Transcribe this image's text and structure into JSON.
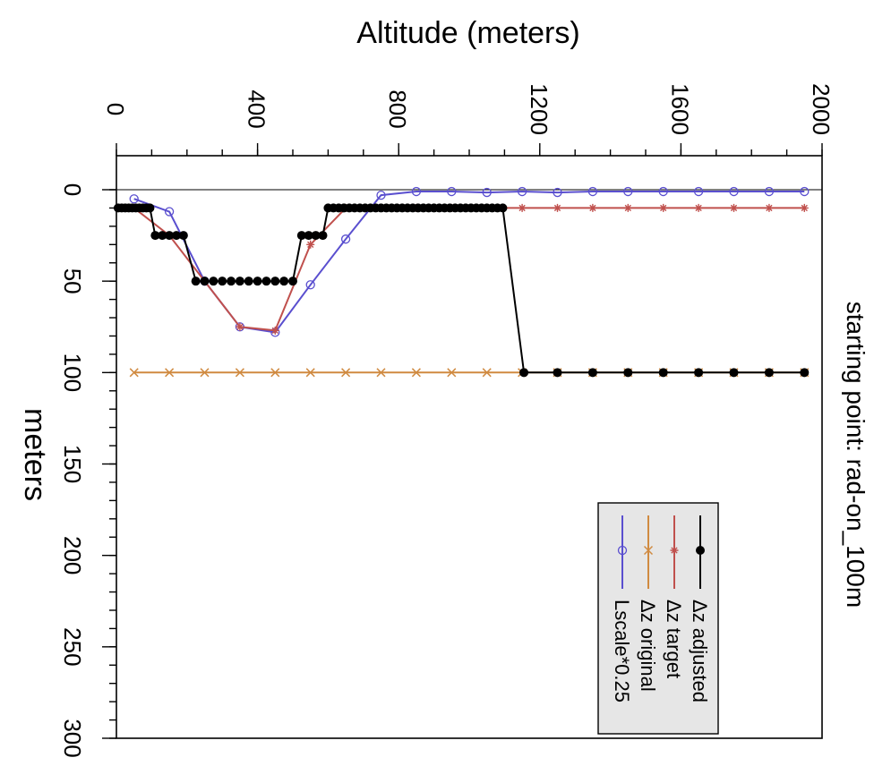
{
  "chart_data": {
    "type": "line",
    "title": "starting point: rad-on_100m",
    "xlabel": "Altitude (meters)",
    "ylabel": "meters",
    "xlim": [
      0,
      2000
    ],
    "ylim": [
      0,
      300
    ],
    "x_ticks": [
      0,
      400,
      800,
      1200,
      1600,
      2000
    ],
    "y_ticks": [
      0,
      50,
      100,
      150,
      200,
      250,
      300
    ],
    "rotated_90_clockwise": true,
    "zero_line": 0,
    "legend": {
      "position": "bottom-right",
      "entries": [
        "Δz adjusted",
        "Δz target",
        "Δz original",
        "Lscale*0.25"
      ]
    },
    "series": [
      {
        "name": "Δz adjusted",
        "color": "#000000",
        "marker": "filled-circle",
        "x": [
          5,
          15,
          25,
          35,
          45,
          55,
          65,
          75,
          85,
          95,
          110,
          130,
          150,
          170,
          190,
          225,
          250,
          275,
          300,
          325,
          350,
          375,
          400,
          425,
          450,
          475,
          500,
          525,
          545,
          565,
          585,
          600,
          615,
          630,
          645,
          660,
          675,
          690,
          705,
          720,
          735,
          750,
          765,
          780,
          795,
          810,
          825,
          840,
          855,
          870,
          885,
          900,
          915,
          930,
          945,
          960,
          975,
          990,
          1005,
          1020,
          1035,
          1050,
          1065,
          1080,
          1095,
          1155,
          1250,
          1350,
          1450,
          1550,
          1650,
          1750,
          1850,
          1950
        ],
        "y": [
          10,
          10,
          10,
          10,
          10,
          10,
          10,
          10,
          10,
          10,
          25,
          25,
          25,
          25,
          25,
          50,
          50,
          50,
          50,
          50,
          50,
          50,
          50,
          50,
          50,
          50,
          50,
          25,
          25,
          25,
          25,
          10,
          10,
          10,
          10,
          10,
          10,
          10,
          10,
          10,
          10,
          10,
          10,
          10,
          10,
          10,
          10,
          10,
          10,
          10,
          10,
          10,
          10,
          10,
          10,
          10,
          10,
          10,
          10,
          10,
          10,
          10,
          10,
          10,
          10,
          100,
          100,
          100,
          100,
          100,
          100,
          100,
          100,
          100
        ]
      },
      {
        "name": "Δz target",
        "color": "#c0504d",
        "marker": "star",
        "x": [
          50,
          150,
          250,
          350,
          450,
          550,
          650,
          750,
          850,
          950,
          1050,
          1150,
          1250,
          1350,
          1450,
          1550,
          1650,
          1750,
          1850,
          1950
        ],
        "y": [
          10,
          25,
          50,
          75,
          77,
          30,
          10,
          10,
          10,
          10,
          10,
          10,
          10,
          10,
          10,
          10,
          10,
          10,
          10,
          10
        ]
      },
      {
        "name": "Δz original",
        "color": "#d08a40",
        "marker": "x",
        "x": [
          50,
          150,
          250,
          350,
          450,
          550,
          650,
          750,
          850,
          950,
          1050,
          1150,
          1250,
          1350,
          1450,
          1550,
          1650,
          1750,
          1850,
          1950
        ],
        "y": [
          100,
          100,
          100,
          100,
          100,
          100,
          100,
          100,
          100,
          100,
          100,
          100,
          100,
          100,
          100,
          100,
          100,
          100,
          100,
          100
        ]
      },
      {
        "name": "Lscale*0.25",
        "color": "#5a4fcf",
        "marker": "open-circle",
        "x": [
          50,
          150,
          250,
          350,
          450,
          550,
          650,
          750,
          850,
          950,
          1050,
          1150,
          1250,
          1350,
          1450,
          1550,
          1650,
          1750,
          1850,
          1950
        ],
        "y": [
          5,
          12,
          50,
          75,
          78,
          52,
          27,
          3,
          1,
          1,
          1.5,
          1,
          1.5,
          1,
          1,
          1,
          1,
          1,
          1,
          1
        ]
      }
    ]
  }
}
